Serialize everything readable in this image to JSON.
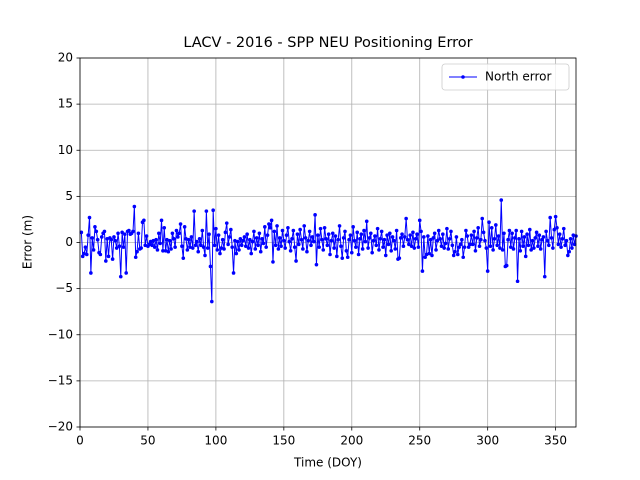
{
  "chart_data": {
    "type": "line",
    "title": "LACV - 2016 - SPP NEU Positioning Error",
    "x_label": "Time (DOY)",
    "y_label": "Error (m)",
    "x": [
      1,
      2,
      3,
      4,
      5,
      6,
      7,
      8,
      9,
      10,
      11,
      12,
      13,
      14,
      15,
      16,
      17,
      18,
      19,
      20,
      21,
      22,
      23,
      24,
      25,
      26,
      27,
      28,
      29,
      30,
      31,
      32,
      33,
      34,
      35,
      36,
      37,
      38,
      39,
      40,
      41,
      42,
      43,
      44,
      45,
      46,
      47,
      48,
      49,
      50,
      51,
      52,
      53,
      54,
      55,
      56,
      57,
      58,
      59,
      60,
      61,
      62,
      63,
      64,
      65,
      66,
      67,
      68,
      69,
      70,
      71,
      72,
      73,
      74,
      75,
      76,
      77,
      78,
      79,
      80,
      81,
      82,
      83,
      84,
      85,
      86,
      87,
      88,
      89,
      90,
      91,
      92,
      93,
      94,
      95,
      96,
      97,
      98,
      99,
      100,
      101,
      102,
      103,
      104,
      105,
      106,
      107,
      108,
      109,
      110,
      111,
      112,
      113,
      114,
      115,
      116,
      117,
      118,
      119,
      120,
      121,
      122,
      123,
      124,
      125,
      126,
      127,
      128,
      129,
      130,
      131,
      132,
      133,
      134,
      135,
      136,
      137,
      138,
      139,
      140,
      141,
      142,
      143,
      144,
      145,
      146,
      147,
      148,
      149,
      150,
      151,
      152,
      153,
      154,
      155,
      156,
      157,
      158,
      159,
      160,
      161,
      162,
      163,
      164,
      165,
      166,
      167,
      168,
      169,
      170,
      171,
      172,
      173,
      174,
      175,
      176,
      177,
      178,
      179,
      180,
      181,
      182,
      183,
      184,
      185,
      186,
      187,
      188,
      189,
      190,
      191,
      192,
      193,
      194,
      195,
      196,
      197,
      198,
      199,
      200,
      201,
      202,
      203,
      204,
      205,
      206,
      207,
      208,
      209,
      210,
      211,
      212,
      213,
      214,
      215,
      216,
      217,
      218,
      219,
      220,
      221,
      222,
      223,
      224,
      225,
      226,
      227,
      228,
      229,
      230,
      231,
      232,
      233,
      234,
      235,
      236,
      237,
      238,
      239,
      240,
      241,
      242,
      243,
      244,
      245,
      246,
      247,
      248,
      249,
      250,
      251,
      252,
      253,
      254,
      255,
      256,
      257,
      258,
      259,
      260,
      261,
      262,
      263,
      264,
      265,
      266,
      267,
      268,
      269,
      270,
      271,
      272,
      273,
      274,
      275,
      276,
      277,
      278,
      279,
      280,
      281,
      282,
      283,
      284,
      285,
      286,
      287,
      288,
      289,
      290,
      291,
      292,
      293,
      294,
      295,
      296,
      297,
      298,
      299,
      300,
      301,
      302,
      303,
      304,
      305,
      306,
      307,
      308,
      309,
      310,
      311,
      312,
      313,
      314,
      315,
      316,
      317,
      318,
      319,
      320,
      321,
      322,
      323,
      324,
      325,
      326,
      327,
      328,
      329,
      330,
      331,
      332,
      333,
      334,
      335,
      336,
      337,
      338,
      339,
      340,
      341,
      342,
      343,
      344,
      345,
      346,
      347,
      348,
      349,
      350,
      351,
      352,
      353,
      354,
      355,
      356,
      357,
      358,
      359,
      360,
      361,
      362,
      363,
      364,
      365
    ],
    "series": [
      {
        "name": "North error",
        "color": "#0000ff",
        "values": [
          1.1,
          -1.5,
          -1.2,
          -0.5,
          -1.3,
          0.8,
          2.7,
          -3.3,
          0.5,
          -0.8,
          1.7,
          1.2,
          0.3,
          -1.1,
          -1.3,
          0.6,
          1.0,
          1.2,
          -2.0,
          0.4,
          -1.5,
          0.5,
          0.3,
          -1.8,
          0.6,
          0.2,
          -0.6,
          1.0,
          -0.4,
          -3.7,
          1.1,
          -0.5,
          0.9,
          -3.3,
          1.2,
          1.3,
          0.9,
          1.0,
          1.2,
          3.9,
          -1.6,
          -1.0,
          1.0,
          -0.7,
          -0.6,
          2.2,
          2.4,
          -0.3,
          0.7,
          -0.4,
          -0.2,
          0.1,
          -0.3,
          0.2,
          -0.5,
          0.3,
          -0.8,
          1.0,
          -0.1,
          2.4,
          -0.9,
          1.6,
          -0.9,
          0.3,
          -1.0,
          0.2,
          -0.7,
          1.0,
          0.4,
          -0.5,
          1.3,
          0.6,
          1.0,
          2.0,
          -0.4,
          -1.7,
          1.7,
          0.4,
          -0.8,
          0.3,
          -0.5,
          0.6,
          -0.6,
          3.4,
          -0.3,
          0.1,
          -1.0,
          0.4,
          -0.3,
          1.3,
          -0.5,
          -1.4,
          3.4,
          -0.6,
          0.9,
          -2.6,
          -6.4,
          3.5,
          -0.3,
          1.5,
          -0.8,
          0.8,
          -1.2,
          -0.6,
          0.3,
          -0.7,
          1.1,
          2.1,
          -0.2,
          0.6,
          1.4,
          -0.5,
          -3.3,
          0.2,
          -1.2,
          0.1,
          -0.8,
          0.4,
          -0.3,
          0.2,
          0.6,
          -0.4,
          0.9,
          -0.6,
          0.3,
          -1.2,
          0.1,
          1.2,
          -0.7,
          0.5,
          -0.3,
          1.0,
          -1.0,
          0.4,
          -0.1,
          1.7,
          -0.5,
          0.8,
          2.0,
          1.6,
          2.4,
          -2.1,
          1.2,
          -0.3,
          1.8,
          -0.7,
          0.5,
          -0.4,
          1.3,
          0.2,
          -0.6,
          0.8,
          1.6,
          0.1,
          -0.9,
          0.4,
          1.3,
          -0.5,
          -2.0,
          0.9,
          -0.2,
          1.4,
          0.3,
          -0.7,
          1.8,
          0.5,
          -1.0,
          0.2,
          1.2,
          -0.3,
          0.6,
          0.1,
          3.0,
          -2.4,
          0.8,
          -0.5,
          1.5,
          0.3,
          -0.8,
          1.6,
          0.4,
          -0.3,
          0.9,
          -1.3,
          0.2,
          1.0,
          -0.6,
          0.7,
          -1.5,
          0.3,
          1.8,
          -0.4,
          -1.7,
          0.5,
          1.2,
          -0.9,
          -1.6,
          0.3,
          0.8,
          -1.1,
          1.7,
          0.2,
          -0.5,
          1.1,
          -1.3,
          0.4,
          0.9,
          -0.7,
          1.3,
          0.1,
          2.3,
          -0.6,
          0.5,
          1.0,
          -1.1,
          0.2,
          0.7,
          -0.3,
          1.5,
          -0.8,
          0.4,
          1.2,
          -0.5,
          0.3,
          -1.4,
          0.8,
          -0.2,
          1.0,
          -0.9,
          0.6,
          0.2,
          -0.7,
          1.3,
          -1.8,
          -1.7,
          0.5,
          0.9,
          -0.4,
          0.6,
          2.6,
          0.3,
          -0.2,
          0.8,
          -0.4,
          1.1,
          -0.6,
          0.4,
          0.9,
          -0.5,
          2.4,
          1.2,
          -3.1,
          0.6,
          -1.6,
          -1.3,
          0.7,
          -1.2,
          0.3,
          -1.4,
          0.5,
          1.0,
          -0.8,
          0.2,
          1.3,
          0.4,
          -0.4,
          0.9,
          -0.6,
          -0.1,
          1.5,
          -0.7,
          0.4,
          1.2,
          -0.3,
          -1.4,
          -1.0,
          0.6,
          -1.3,
          -0.5,
          -0.2,
          0.3,
          -1.6,
          -0.5,
          1.3,
          0.7,
          -0.5,
          -0.2,
          0.8,
          -0.2,
          1.2,
          -0.9,
          0.5,
          1.6,
          -0.4,
          0.3,
          2.6,
          1.1,
          0.2,
          -0.6,
          -3.1,
          2.2,
          -0.4,
          1.6,
          -0.8,
          0.4,
          1.9,
          -0.3,
          0.7,
          -0.6,
          4.6,
          -0.8,
          1.0,
          -2.6,
          -2.5,
          0.3,
          1.3,
          -0.5,
          1.0,
          -0.7,
          0.5,
          1.3,
          -4.2,
          0.4,
          -0.9,
          1.2,
          -0.4,
          0.6,
          -1.5,
          0.9,
          -0.3,
          1.4,
          -0.8,
          0.2,
          -0.6,
          0.5,
          1.1,
          -0.4,
          0.8,
          -0.7,
          0.3,
          0.6,
          -3.7,
          1.2,
          0.2,
          -0.3,
          2.7,
          0.5,
          -0.6,
          1.4,
          2.8,
          1.6,
          -0.2,
          0.9,
          -0.5,
          0.4,
          1.5,
          -0.3,
          0.2,
          -1.4,
          -1.0,
          0.4,
          -0.6,
          0.8,
          -0.2,
          0.7
        ]
      }
    ],
    "xlim": [
      0,
      365
    ],
    "xticks": [
      0,
      50,
      100,
      150,
      200,
      250,
      300,
      350
    ],
    "ylim": [
      -20,
      20
    ],
    "yticks": [
      {
        "value": -20,
        "label": "−20"
      },
      {
        "value": -15,
        "label": "−15"
      },
      {
        "value": -10,
        "label": "−10"
      },
      {
        "value": -5,
        "label": "−5"
      },
      0,
      5,
      10,
      15,
      20
    ],
    "grid": true,
    "legend": "upper right"
  }
}
